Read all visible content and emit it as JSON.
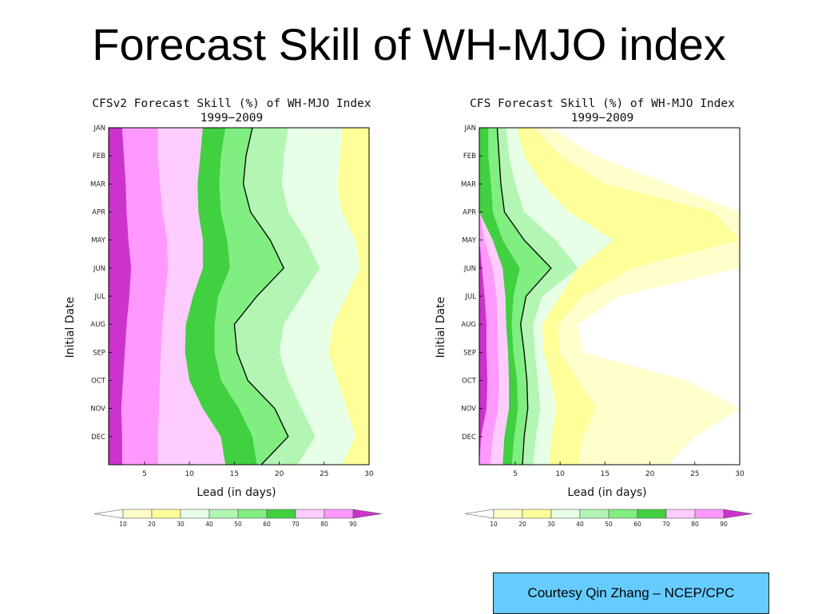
{
  "slide": {
    "title": "Forecast Skill of WH-MJO index",
    "credit": "Courtesy Qin Zhang – NCEP/CPC"
  },
  "chart_data": [
    {
      "type": "heatmap",
      "title": "CFSv2 Forecast Skill (%) of WH-MJO Index",
      "subtitle": "1999−2009",
      "xlabel": "Lead (in days)",
      "ylabel": "Initial Date",
      "xlim": [
        1,
        30
      ],
      "x_ticks": [
        5,
        10,
        15,
        20,
        25,
        30
      ],
      "y_ticks": [
        "JAN",
        "FEB",
        "MAR",
        "APR",
        "MAY",
        "JUN",
        "JUL",
        "AUG",
        "SEP",
        "OCT",
        "NOV",
        "DEC"
      ],
      "y_months": [
        0,
        1,
        2,
        3,
        4,
        5,
        6,
        7,
        8,
        9,
        10,
        11,
        12
      ],
      "levels": [
        10,
        20,
        30,
        40,
        50,
        60,
        70,
        80,
        90
      ],
      "highlighted_contour": 50,
      "boundaries_by_month": {
        "90": [
          2.5,
          2.7,
          2.9,
          3.0,
          3.2,
          3.5,
          3.3,
          3.0,
          2.8,
          2.6,
          2.4,
          2.5,
          2.5
        ],
        "80": [
          6.5,
          6.5,
          6.7,
          7.0,
          7.5,
          7.6,
          7.3,
          7.0,
          6.8,
          6.7,
          6.6,
          6.5,
          6.5
        ],
        "70": [
          11.5,
          11.2,
          10.9,
          11.0,
          11.5,
          11.5,
          10.4,
          9.6,
          9.5,
          10.0,
          11.5,
          13.5,
          14.0
        ],
        "60": [
          14.0,
          13.5,
          13.3,
          13.5,
          14.2,
          14.5,
          13.2,
          12.8,
          12.8,
          13.5,
          15.5,
          17.0,
          17.5
        ],
        "50": [
          17.0,
          16.3,
          16.0,
          16.8,
          19.0,
          20.5,
          17.5,
          15.0,
          15.3,
          16.5,
          19.5,
          21.0,
          18.0
        ],
        "40": [
          21.0,
          20.5,
          20.3,
          21.0,
          23.0,
          24.5,
          22.5,
          20.5,
          20.0,
          21.0,
          22.5,
          24.0,
          22.0
        ],
        "30": [
          27.0,
          26.8,
          26.5,
          27.0,
          28.5,
          29.0,
          27.5,
          26.0,
          25.5,
          26.5,
          27.5,
          28.5,
          27.0
        ],
        "20": [
          30.0,
          30.0,
          30.0,
          30.0,
          30.0,
          30.0,
          30.0,
          30.0,
          30.0,
          30.0,
          30.0,
          30.0,
          30.0
        ]
      }
    },
    {
      "type": "heatmap",
      "title": "CFS Forecast Skill (%) of WH-MJO Index",
      "subtitle": "1999−2009",
      "xlabel": "Lead (in days)",
      "ylabel": "Initial Date",
      "xlim": [
        1,
        30
      ],
      "x_ticks": [
        5,
        10,
        15,
        20,
        25,
        30
      ],
      "y_ticks": [
        "JAN",
        "FEB",
        "MAR",
        "APR",
        "MAY",
        "JUN",
        "JUL",
        "AUG",
        "SEP",
        "OCT",
        "NOV",
        "DEC"
      ],
      "y_months": [
        0,
        1,
        2,
        3,
        4,
        5,
        6,
        7,
        8,
        9,
        10,
        11,
        12
      ],
      "levels": [
        10,
        20,
        30,
        40,
        50,
        60,
        70,
        80,
        90
      ],
      "highlighted_contour": 50,
      "boundaries_by_month": {
        "90": [
          1.0,
          1.0,
          1.0,
          1.0,
          1.0,
          1.3,
          1.6,
          1.8,
          1.8,
          1.9,
          1.8,
          1.2,
          1.0
        ],
        "80": [
          1.0,
          1.0,
          1.0,
          1.0,
          1.6,
          2.5,
          2.9,
          3.0,
          3.1,
          3.2,
          3.1,
          2.5,
          2.2
        ],
        "70": [
          1.0,
          1.0,
          1.0,
          1.0,
          2.5,
          3.6,
          3.9,
          4.0,
          4.2,
          4.3,
          4.3,
          3.8,
          3.6
        ],
        "60": [
          2.0,
          2.0,
          2.3,
          2.5,
          3.6,
          5.5,
          4.8,
          4.6,
          4.8,
          5.2,
          5.3,
          4.9,
          4.6
        ],
        "50": [
          3.0,
          3.2,
          3.4,
          3.8,
          6.0,
          9.0,
          6.2,
          5.6,
          6.0,
          6.3,
          6.4,
          6.0,
          5.8
        ],
        "40": [
          4.0,
          4.3,
          5.0,
          6.0,
          9.5,
          12.0,
          8.0,
          7.0,
          7.2,
          7.5,
          7.8,
          7.3,
          7.0
        ],
        "30": [
          5.2,
          6.0,
          8.0,
          11.0,
          16.0,
          12.0,
          10.0,
          8.0,
          8.2,
          9.0,
          9.6,
          9.0,
          8.8
        ],
        "20": [
          7.0,
          10.0,
          15.0,
          27.0,
          30.0,
          18.0,
          12.5,
          9.8,
          10.0,
          12.0,
          14.0,
          12.5,
          12.0
        ],
        "10": [
          9.0,
          14.0,
          22.0,
          30.0,
          30.0,
          30.0,
          16.5,
          12.0,
          12.5,
          24.0,
          30.0,
          25.0,
          22.0
        ]
      }
    }
  ]
}
